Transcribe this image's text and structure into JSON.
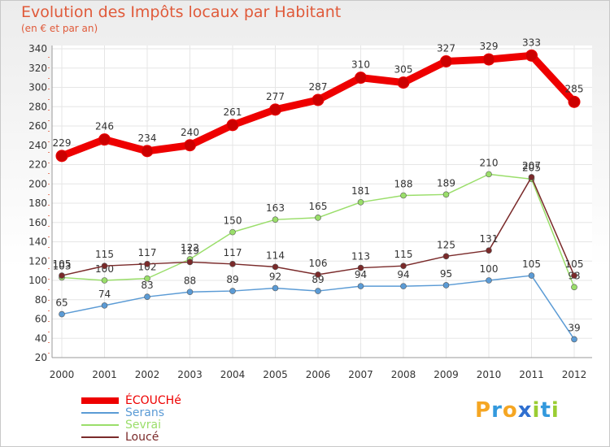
{
  "chart_data": {
    "type": "line",
    "title": "Evolution des Impôts locaux par Habitant",
    "subtitle": "(en € et par an)",
    "x": [
      "2000",
      "2001",
      "2002",
      "2003",
      "2004",
      "2005",
      "2006",
      "2007",
      "2008",
      "2009",
      "2010",
      "2011",
      "2012"
    ],
    "yticks": [
      20,
      40,
      60,
      80,
      100,
      120,
      140,
      160,
      180,
      200,
      220,
      240,
      260,
      280,
      300,
      320,
      340
    ],
    "ylim": [
      20,
      340
    ],
    "grid": true,
    "legend_position": "bottom-left",
    "series": [
      {
        "name": "ÉCOUCHé",
        "color": "#ee0000",
        "values": [
          229,
          246,
          234,
          240,
          261,
          277,
          287,
          310,
          305,
          327,
          329,
          333,
          285
        ]
      },
      {
        "name": "Serans",
        "color": "#5b9bd5",
        "values": [
          65,
          74,
          83,
          88,
          89,
          92,
          89,
          94,
          94,
          95,
          100,
          105,
          39
        ]
      },
      {
        "name": "Sevrai",
        "color": "#9ade6a",
        "values": [
          103,
          100,
          102,
          122,
          150,
          163,
          165,
          181,
          188,
          189,
          210,
          205,
          93
        ]
      },
      {
        "name": "Loucé",
        "color": "#7a2a2a",
        "values": [
          105,
          115,
          117,
          119,
          117,
          114,
          106,
          113,
          115,
          125,
          131,
          207,
          105
        ]
      }
    ]
  },
  "logo": {
    "letters": [
      "P",
      "r",
      "o",
      "x",
      "i",
      "t",
      "i"
    ],
    "colors": [
      "#f5a623",
      "#3399dd",
      "#f5a623",
      "#2f6fd0",
      "#9acd32",
      "#3399dd",
      "#9acd32"
    ]
  }
}
